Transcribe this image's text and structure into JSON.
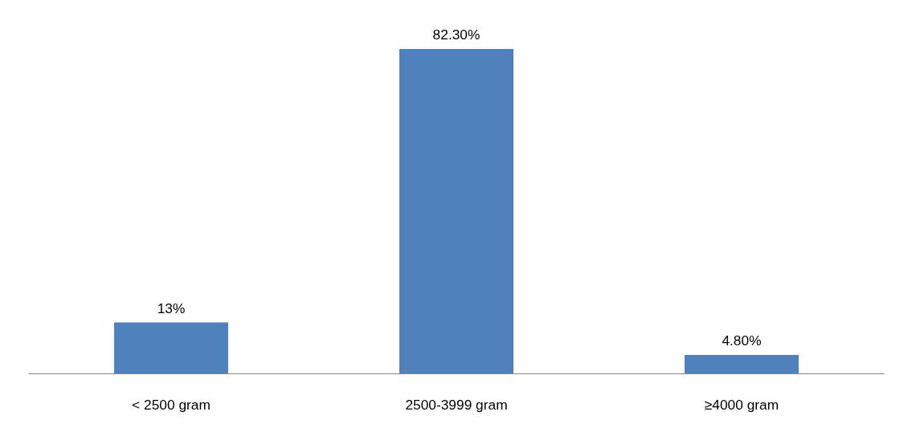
{
  "chart_data": {
    "type": "bar",
    "categories": [
      "< 2500 gram",
      "2500-3999 gram",
      "≥4000 gram"
    ],
    "values": [
      13,
      82.3,
      4.8
    ],
    "value_labels": [
      "13%",
      "82.30%",
      "4.80%"
    ],
    "color": "#4f81bd"
  }
}
